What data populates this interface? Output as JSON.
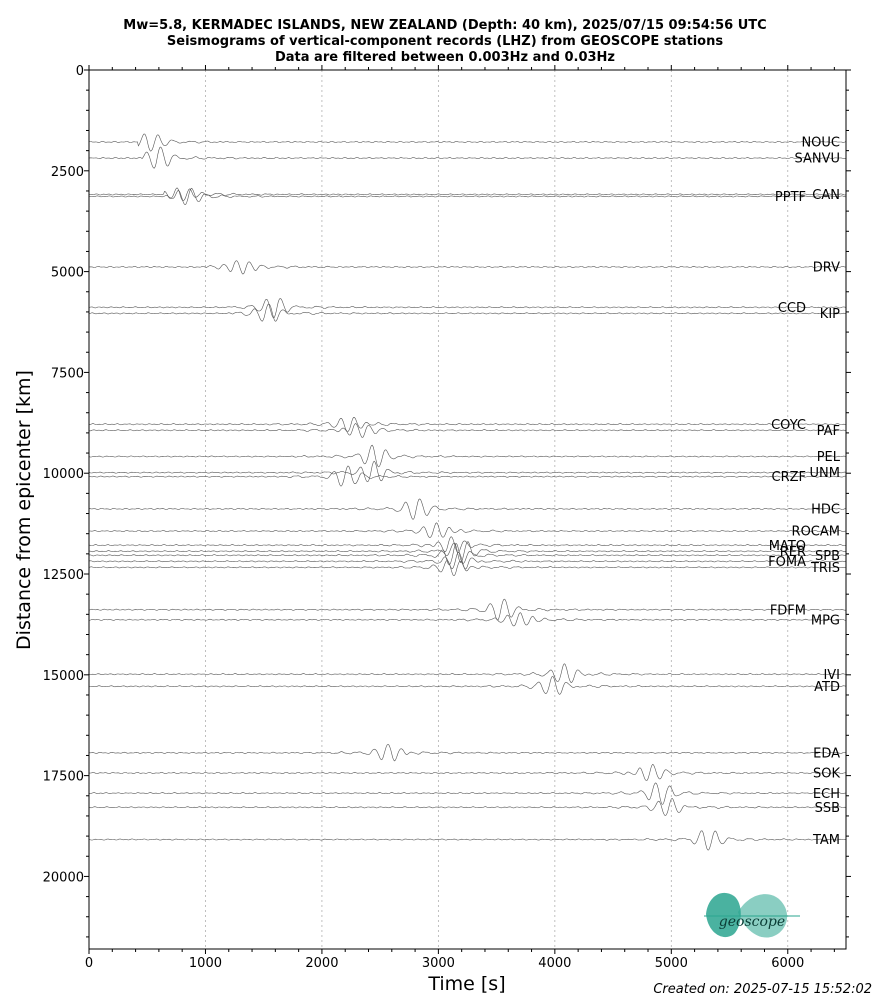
{
  "header": {
    "title_line1": "Mw=5.8, KERMADEC ISLANDS, NEW ZEALAND (Depth: 40 km), 2025/07/15 09:54:56 UTC",
    "title_line2": "Seismograms of vertical-component records (LHZ) from GEOSCOPE stations",
    "title_line3": "Data are filtered between 0.003Hz and 0.03Hz"
  },
  "footer": {
    "created": "Created on: 2025-07-15 15:52:02"
  },
  "logo": {
    "text": "geoscope",
    "color": "#2aa58f"
  },
  "chart_data": {
    "type": "line",
    "xlabel": "Time [s]",
    "ylabel": "Distance from epicenter [km]",
    "xlim": [
      0,
      6500
    ],
    "ylim": [
      0,
      21800
    ],
    "y_inverted": true,
    "xticks": [
      0,
      1000,
      2000,
      3000,
      4000,
      5000,
      6000
    ],
    "yticks": [
      0,
      2500,
      5000,
      7500,
      10000,
      12500,
      15000,
      17500,
      20000
    ],
    "vertical_gridlines": [
      1000,
      2000,
      3000,
      4000,
      5000,
      6000
    ],
    "trace_color": "#555555",
    "stations": [
      {
        "name": "NOUC",
        "distance": 1800,
        "label_side": "right",
        "onset": 420,
        "peak": 500
      },
      {
        "name": "SANVU",
        "distance": 2200,
        "label_side": "right",
        "onset": 450,
        "peak": 600
      },
      {
        "name": "CAN",
        "distance": 3100,
        "label_side": "right",
        "onset": 640,
        "peak": 800
      },
      {
        "name": "PPTF",
        "distance": 3150,
        "label_side": "left",
        "onset": 650,
        "peak": 830
      },
      {
        "name": "DRV",
        "distance": 4900,
        "label_side": "right",
        "onset": 1000,
        "peak": 1300
      },
      {
        "name": "CCD",
        "distance": 5900,
        "label_side": "left",
        "onset": 1200,
        "peak": 1600
      },
      {
        "name": "KIP",
        "distance": 6050,
        "label_side": "right",
        "onset": 1230,
        "peak": 1560
      },
      {
        "name": "COYC",
        "distance": 8800,
        "label_side": "left",
        "onset": 1500,
        "peak": 2250
      },
      {
        "name": "PAF",
        "distance": 8950,
        "label_side": "right",
        "onset": 1520,
        "peak": 2300
      },
      {
        "name": "PEL",
        "distance": 9600,
        "label_side": "right",
        "onset": 1600,
        "peak": 2450
      },
      {
        "name": "UNM",
        "distance": 10000,
        "label_side": "right",
        "onset": 1650,
        "peak": 2450
      },
      {
        "name": "CRZF",
        "distance": 10100,
        "label_side": "left",
        "onset": 1650,
        "peak": 2200
      },
      {
        "name": "HDC",
        "distance": 10900,
        "label_side": "right",
        "onset": 1700,
        "peak": 2800
      },
      {
        "name": "ROCAM",
        "distance": 11450,
        "label_side": "right",
        "onset": 1750,
        "peak": 3000
      },
      {
        "name": "MATO",
        "distance": 11800,
        "label_side": "left",
        "onset": 500,
        "peak": 3100
      },
      {
        "name": "RER",
        "distance": 11950,
        "label_side": "left",
        "onset": 500,
        "peak": 3200
      },
      {
        "name": "SPB",
        "distance": 12050,
        "label_side": "right",
        "onset": 500,
        "peak": 3150
      },
      {
        "name": "FOMA",
        "distance": 12200,
        "label_side": "left",
        "onset": 500,
        "peak": 3200
      },
      {
        "name": "TRIS",
        "distance": 12350,
        "label_side": "right",
        "onset": 0,
        "peak": 3150
      },
      {
        "name": "FDFM",
        "distance": 13400,
        "label_side": "left",
        "onset": 1800,
        "peak": 3550
      },
      {
        "name": "MPG",
        "distance": 13650,
        "label_side": "right",
        "onset": 1850,
        "peak": 3700
      },
      {
        "name": "IVI",
        "distance": 15000,
        "label_side": "right",
        "onset": 1500,
        "peak": 4100
      },
      {
        "name": "ATD",
        "distance": 15300,
        "label_side": "right",
        "onset": 1500,
        "peak": 4000
      },
      {
        "name": "EDA",
        "distance": 16950,
        "label_side": "right",
        "onset": 1200,
        "peak": 2600
      },
      {
        "name": "SOK",
        "distance": 17450,
        "label_side": "right",
        "onset": 1300,
        "peak": 4800
      },
      {
        "name": "ECH",
        "distance": 17950,
        "label_side": "right",
        "onset": 1300,
        "peak": 4900
      },
      {
        "name": "SSB",
        "distance": 18300,
        "label_side": "right",
        "onset": 1300,
        "peak": 5000
      },
      {
        "name": "TAM",
        "distance": 19100,
        "label_side": "right",
        "onset": 1400,
        "peak": 5300
      }
    ]
  }
}
